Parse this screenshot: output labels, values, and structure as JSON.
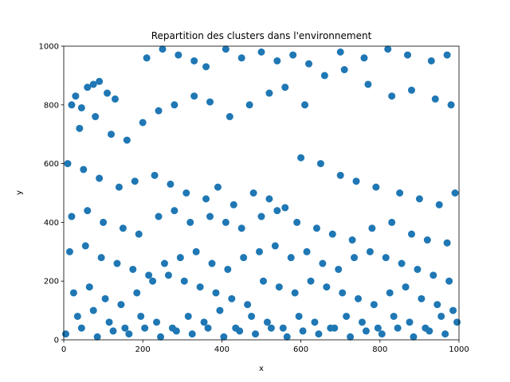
{
  "chart_data": {
    "type": "scatter",
    "title": "Repartition des clusters dans l'environnement",
    "xlabel": "x",
    "ylabel": "y",
    "xlim": [
      0,
      1000
    ],
    "ylim": [
      0,
      1000
    ],
    "xticks": [
      "0",
      "200",
      "400",
      "600",
      "800",
      "1000"
    ],
    "yticks": [
      "0",
      "200",
      "400",
      "600",
      "800",
      "1000"
    ],
    "grid": false,
    "legend": "none",
    "marker": "circle",
    "color": "#1f77b4",
    "x": [
      30,
      60,
      90,
      110,
      20,
      45,
      75,
      130,
      210,
      250,
      290,
      330,
      360,
      410,
      450,
      500,
      540,
      580,
      620,
      700,
      760,
      820,
      870,
      930,
      970,
      40,
      80,
      120,
      160,
      200,
      240,
      280,
      330,
      370,
      420,
      470,
      520,
      560,
      610,
      660,
      710,
      770,
      830,
      880,
      940,
      980,
      10,
      50,
      90,
      140,
      180,
      230,
      270,
      310,
      360,
      390,
      430,
      480,
      520,
      560,
      600,
      650,
      700,
      740,
      790,
      850,
      900,
      950,
      990,
      20,
      60,
      100,
      150,
      190,
      240,
      280,
      320,
      370,
      410,
      450,
      500,
      540,
      590,
      640,
      680,
      730,
      780,
      830,
      880,
      920,
      970,
      15,
      55,
      95,
      135,
      175,
      215,
      255,
      295,
      335,
      375,
      415,
      455,
      495,
      535,
      575,
      615,
      655,
      695,
      735,
      775,
      815,
      855,
      895,
      935,
      975,
      25,
      65,
      105,
      145,
      185,
      225,
      265,
      305,
      345,
      385,
      425,
      465,
      505,
      545,
      585,
      625,
      665,
      705,
      745,
      785,
      825,
      865,
      905,
      945,
      985,
      35,
      75,
      115,
      155,
      195,
      235,
      275,
      315,
      355,
      395,
      435,
      475,
      515,
      555,
      595,
      635,
      675,
      715,
      755,
      795,
      835,
      875,
      915,
      955,
      995,
      5,
      45,
      85,
      125,
      165,
      205,
      245,
      285,
      325,
      365,
      405,
      445,
      485,
      525,
      565,
      605,
      645,
      685,
      725,
      765,
      805,
      845,
      885,
      925,
      965
    ],
    "y": [
      830,
      860,
      880,
      840,
      800,
      790,
      870,
      820,
      960,
      990,
      970,
      950,
      930,
      990,
      960,
      980,
      950,
      970,
      940,
      980,
      960,
      990,
      970,
      950,
      970,
      720,
      760,
      700,
      680,
      740,
      780,
      800,
      830,
      810,
      760,
      800,
      840,
      860,
      800,
      900,
      920,
      870,
      830,
      850,
      820,
      800,
      600,
      580,
      550,
      520,
      540,
      560,
      530,
      500,
      480,
      520,
      460,
      500,
      480,
      450,
      620,
      600,
      560,
      540,
      520,
      500,
      480,
      460,
      500,
      420,
      440,
      400,
      380,
      360,
      420,
      440,
      400,
      420,
      400,
      380,
      420,
      440,
      400,
      380,
      360,
      340,
      380,
      400,
      360,
      340,
      330,
      300,
      320,
      280,
      260,
      240,
      220,
      260,
      280,
      300,
      260,
      240,
      280,
      300,
      320,
      280,
      300,
      260,
      240,
      280,
      300,
      280,
      260,
      240,
      220,
      200,
      160,
      180,
      140,
      120,
      160,
      200,
      220,
      200,
      180,
      160,
      140,
      120,
      200,
      180,
      160,
      200,
      180,
      160,
      140,
      120,
      160,
      180,
      140,
      120,
      100,
      80,
      100,
      60,
      40,
      80,
      60,
      40,
      80,
      60,
      100,
      40,
      80,
      60,
      40,
      80,
      60,
      40,
      80,
      60,
      40,
      80,
      60,
      40,
      80,
      60,
      20,
      40,
      10,
      30,
      20,
      40,
      10,
      30,
      20,
      40,
      10,
      30,
      20,
      40,
      10,
      30,
      20,
      40,
      10,
      30,
      20,
      40,
      10,
      30,
      20
    ]
  }
}
